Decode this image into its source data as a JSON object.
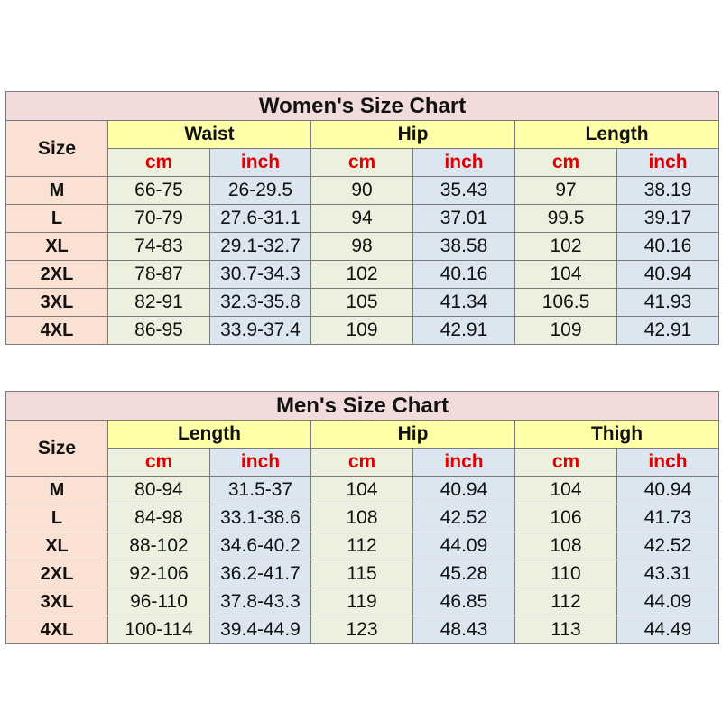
{
  "colors": {
    "title_bg": "#f2dcdb",
    "size_bg": "#fbe1d3",
    "group_bg": "#ffffa8",
    "cm_bg": "#ebf1de",
    "inch_bg": "#dce6f1",
    "unit_text": "#e00000",
    "border": "#7a7a7a"
  },
  "women": {
    "title": "Women's Size Chart",
    "size_label": "Size",
    "groups": [
      "Waist",
      "Hip",
      "Length"
    ],
    "units": [
      "cm",
      "inch",
      "cm",
      "inch",
      "cm",
      "inch"
    ],
    "rows": [
      {
        "size": "M",
        "values": [
          "66-75",
          "26-29.5",
          "90",
          "35.43",
          "97",
          "38.19"
        ]
      },
      {
        "size": "L",
        "values": [
          "70-79",
          "27.6-31.1",
          "94",
          "37.01",
          "99.5",
          "39.17"
        ]
      },
      {
        "size": "XL",
        "values": [
          "74-83",
          "29.1-32.7",
          "98",
          "38.58",
          "102",
          "40.16"
        ]
      },
      {
        "size": "2XL",
        "values": [
          "78-87",
          "30.7-34.3",
          "102",
          "40.16",
          "104",
          "40.94"
        ]
      },
      {
        "size": "3XL",
        "values": [
          "82-91",
          "32.3-35.8",
          "105",
          "41.34",
          "106.5",
          "41.93"
        ]
      },
      {
        "size": "4XL",
        "values": [
          "86-95",
          "33.9-37.4",
          "109",
          "42.91",
          "109",
          "42.91"
        ]
      }
    ]
  },
  "men": {
    "title": "Men's Size Chart",
    "size_label": "Size",
    "groups": [
      "Length",
      "Hip",
      "Thigh"
    ],
    "units": [
      "cm",
      "inch",
      "cm",
      "inch",
      "cm",
      "inch"
    ],
    "rows": [
      {
        "size": "M",
        "values": [
          "80-94",
          "31.5-37",
          "104",
          "40.94",
          "104",
          "40.94"
        ]
      },
      {
        "size": "L",
        "values": [
          "84-98",
          "33.1-38.6",
          "108",
          "42.52",
          "106",
          "41.73"
        ]
      },
      {
        "size": "XL",
        "values": [
          "88-102",
          "34.6-40.2",
          "112",
          "44.09",
          "108",
          "42.52"
        ]
      },
      {
        "size": "2XL",
        "values": [
          "92-106",
          "36.2-41.7",
          "115",
          "45.28",
          "110",
          "43.31"
        ]
      },
      {
        "size": "3XL",
        "values": [
          "96-110",
          "37.8-43.3",
          "119",
          "46.85",
          "112",
          "44.09"
        ]
      },
      {
        "size": "4XL",
        "values": [
          "100-114",
          "39.4-44.9",
          "123",
          "48.43",
          "113",
          "44.49"
        ]
      }
    ]
  }
}
